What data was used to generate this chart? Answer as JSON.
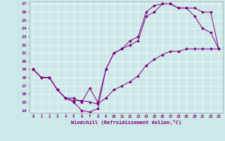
{
  "xlabel": "Windchill (Refroidissement éolien,°C)",
  "background_color": "#cde8e8",
  "line_color": "#800080",
  "grid_color": "#ffffff",
  "xlim": [
    -0.5,
    23.5
  ],
  "ylim": [
    13.7,
    27.3
  ],
  "xticks": [
    0,
    1,
    2,
    3,
    4,
    5,
    6,
    7,
    8,
    9,
    10,
    11,
    12,
    13,
    14,
    15,
    16,
    17,
    18,
    19,
    20,
    21,
    22,
    23
  ],
  "yticks": [
    14,
    15,
    16,
    17,
    18,
    19,
    20,
    21,
    22,
    23,
    24,
    25,
    26,
    27
  ],
  "curve1_x": [
    0,
    1,
    2,
    3,
    4,
    5,
    6,
    7,
    8,
    9,
    10,
    11,
    12,
    13,
    14,
    15,
    16,
    17,
    18,
    19,
    20,
    21,
    22,
    23
  ],
  "curve1_y": [
    19,
    18,
    18,
    16.5,
    15.5,
    15,
    14,
    13.8,
    14.2,
    19,
    21,
    21.5,
    22,
    22.5,
    25.5,
    26,
    27,
    27,
    26.5,
    26.5,
    26.5,
    26,
    26,
    21.5
  ],
  "curve2_x": [
    0,
    1,
    2,
    3,
    4,
    5,
    6,
    7,
    8,
    9,
    10,
    11,
    12,
    13,
    14,
    15,
    16,
    17,
    18,
    19,
    20,
    21,
    22,
    23
  ],
  "curve2_y": [
    19,
    18,
    18,
    16.5,
    15.5,
    15.5,
    15,
    16.7,
    15,
    19,
    21,
    21.5,
    22.5,
    23,
    26,
    26.8,
    27,
    27,
    26.5,
    26.5,
    25.5,
    24,
    23.5,
    21.5
  ],
  "curve3_x": [
    0,
    1,
    2,
    3,
    4,
    5,
    6,
    7,
    8,
    9,
    10,
    11,
    12,
    13,
    14,
    15,
    16,
    17,
    18,
    19,
    20,
    21,
    22,
    23
  ],
  "curve3_y": [
    19,
    18,
    18,
    16.5,
    15.5,
    15.2,
    15.2,
    15.0,
    14.8,
    15.5,
    16.5,
    17,
    17.5,
    18.2,
    19.5,
    20.2,
    20.8,
    21.2,
    21.2,
    21.5,
    21.5,
    21.5,
    21.5,
    21.5
  ]
}
